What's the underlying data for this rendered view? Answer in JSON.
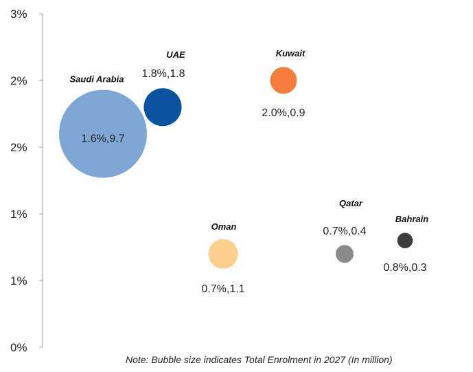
{
  "chart_data": {
    "type": "bubble",
    "title": "",
    "xlabel": "",
    "ylabel": "",
    "ylim": [
      0,
      2.5
    ],
    "y_ticks": [
      0,
      0.5,
      1.0,
      1.5,
      2.0,
      2.5
    ],
    "y_tick_labels": [
      "0%",
      "1%",
      "1%",
      "2%",
      "2%",
      "3%"
    ],
    "grid": false,
    "points": [
      {
        "name": "Saudi Arabia",
        "y": 1.6,
        "size": 9.7,
        "label": "1.6%,9.7",
        "color": "#7fa7d5"
      },
      {
        "name": "UAE",
        "y": 1.8,
        "size": 1.8,
        "label": "1.8%,1.8",
        "color": "#0b539e"
      },
      {
        "name": "Oman",
        "y": 0.7,
        "size": 1.1,
        "label": "0.7%,1.1",
        "color": "#fbd08c"
      },
      {
        "name": "Kuwait",
        "y": 2.0,
        "size": 0.9,
        "label": "2.0%,0.9",
        "color": "#f47d3d"
      },
      {
        "name": "Qatar",
        "y": 0.7,
        "size": 0.4,
        "label": "0.7%,0.4",
        "color": "#8a8a8a"
      },
      {
        "name": "Bahrain",
        "y": 0.8,
        "size": 0.3,
        "label": "0.8%,0.3",
        "color": "#3d3d3d"
      }
    ],
    "note": "Note: Bubble size indicates Total Enrolment in 2027 (In million)"
  }
}
